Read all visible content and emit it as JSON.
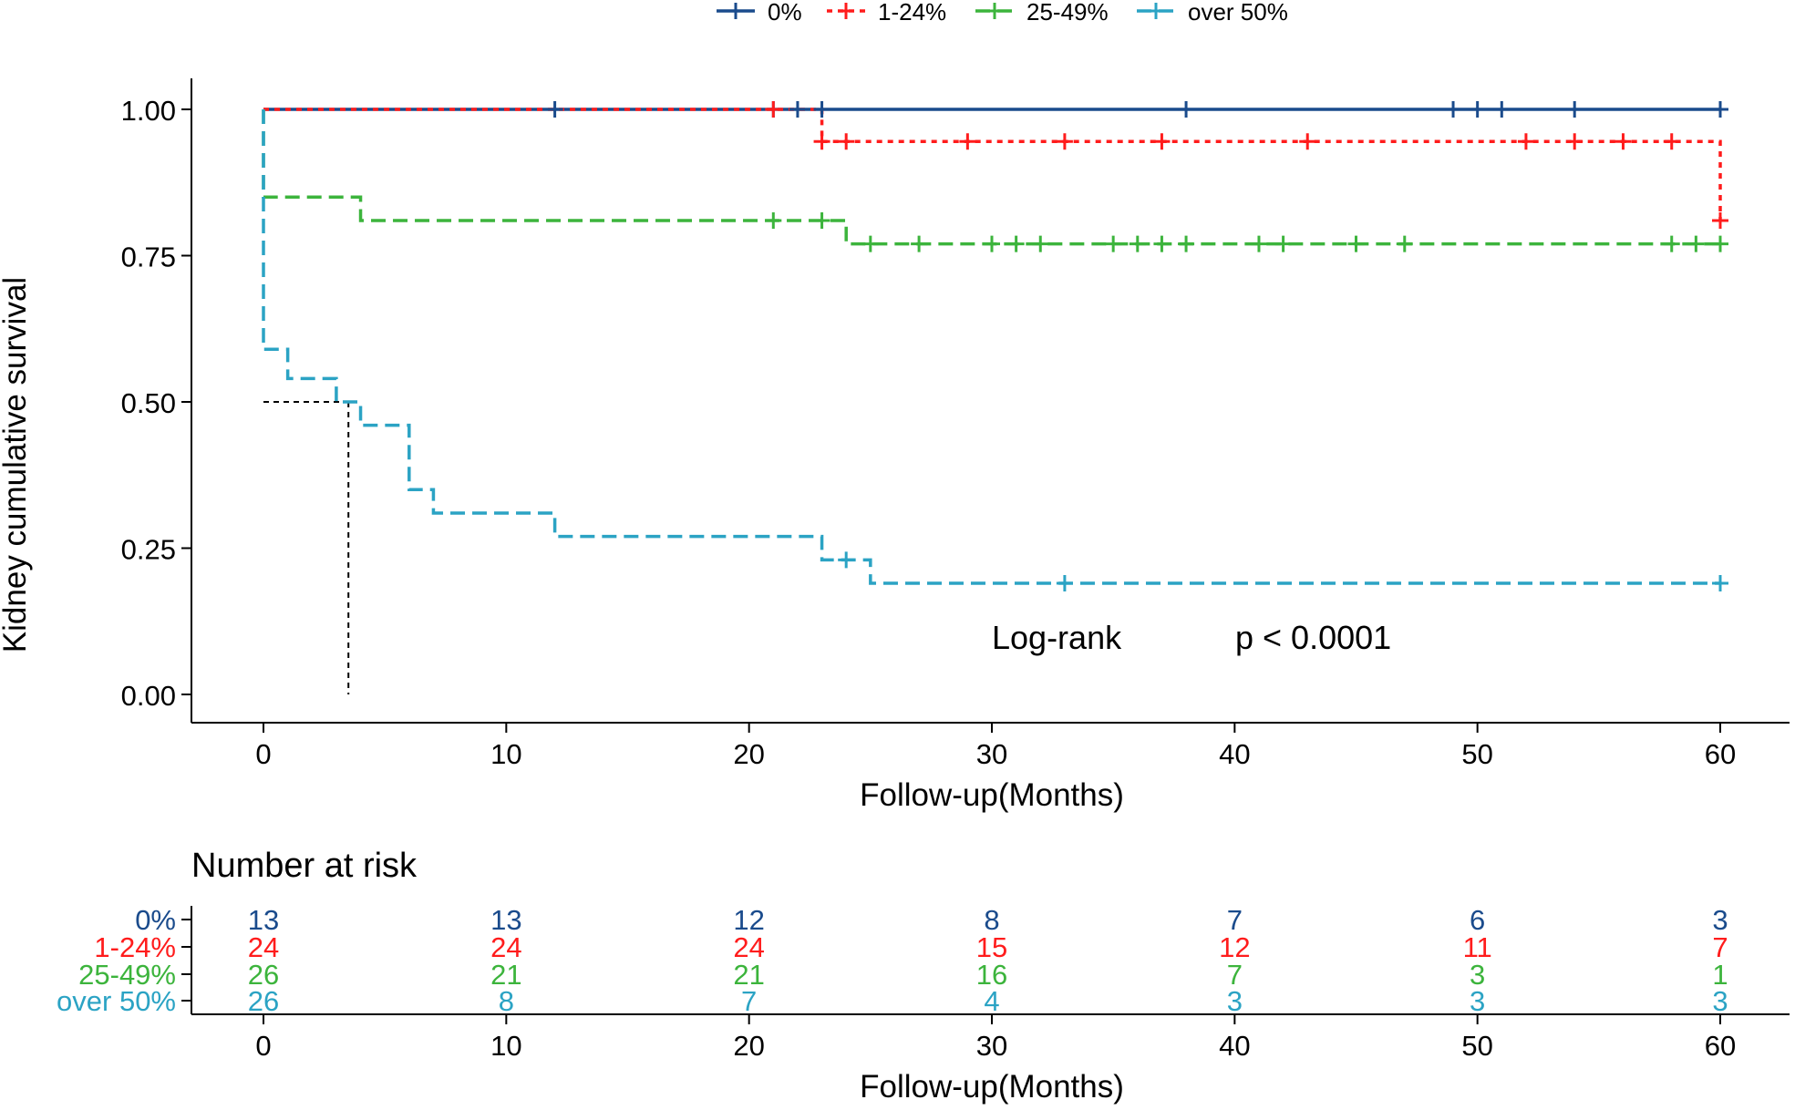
{
  "chart_data": {
    "type": "line",
    "subtype": "kaplan-meier",
    "legend": {
      "position": "top",
      "entries": [
        "0%",
        "1-24%",
        "25-49%",
        "over 50%"
      ]
    },
    "xlabel": "Follow-up(Months)",
    "ylabel": "Kidney cumulative survival",
    "xlim": [
      0,
      60
    ],
    "ylim": [
      0,
      1
    ],
    "x_ticks": [
      0,
      10,
      20,
      30,
      40,
      50,
      60
    ],
    "y_ticks": [
      0,
      0.25,
      0.5,
      0.75,
      1.0
    ],
    "y_tick_labels": [
      "0.00",
      "0.25",
      "0.50",
      "0.75",
      "1.00"
    ],
    "annotation": {
      "label": "Log-rank",
      "pvalue": "p < 0.0001"
    },
    "median_line": {
      "x": 3.5,
      "y": 0.5
    },
    "series": [
      {
        "name": "0%",
        "color": "#1a4b8c",
        "dash": "solid",
        "steps": [
          [
            0,
            1.0
          ],
          [
            60,
            1.0
          ]
        ],
        "censors": [
          12,
          21,
          22,
          23,
          38,
          49,
          50,
          51,
          54,
          60
        ]
      },
      {
        "name": "1-24%",
        "color": "#ff1c1c",
        "dash": "dotted",
        "steps": [
          [
            0,
            1.0
          ],
          [
            23,
            0.945
          ],
          [
            60,
            0.81
          ]
        ],
        "censors": [
          21,
          23,
          24,
          29,
          33,
          37,
          43,
          52,
          54,
          56,
          58,
          60
        ]
      },
      {
        "name": "25-49%",
        "color": "#3cb43c",
        "dash": "dashed",
        "steps": [
          [
            0,
            0.85
          ],
          [
            4,
            0.81
          ],
          [
            24,
            0.77
          ],
          [
            60,
            0.77
          ]
        ],
        "censors": [
          21,
          23,
          25,
          27,
          30,
          31,
          32,
          35,
          36,
          37,
          38,
          41,
          42,
          45,
          47,
          58,
          59,
          60
        ]
      },
      {
        "name": "over 50%",
        "color": "#2ba3c4",
        "dash": "dashed",
        "steps": [
          [
            0,
            0.59
          ],
          [
            1,
            0.54
          ],
          [
            3,
            0.5
          ],
          [
            4,
            0.46
          ],
          [
            6,
            0.35
          ],
          [
            7,
            0.31
          ],
          [
            12,
            0.27
          ],
          [
            23,
            0.23
          ],
          [
            25,
            0.19
          ],
          [
            60,
            0.19
          ]
        ],
        "censors": [
          24,
          33,
          60
        ]
      }
    ],
    "risk_table": {
      "title": "Number at risk",
      "xlabel": "Follow-up(Months)",
      "times": [
        0,
        10,
        20,
        30,
        40,
        50,
        60
      ],
      "x_tick_labels": [
        "0",
        "10",
        "20",
        "30",
        "40",
        "50",
        "60"
      ],
      "rows": [
        {
          "name": "0%",
          "color": "#1a4b8c",
          "values": [
            13,
            13,
            12,
            8,
            7,
            6,
            3
          ]
        },
        {
          "name": "1-24%",
          "color": "#ff1c1c",
          "values": [
            24,
            24,
            24,
            15,
            12,
            11,
            7
          ]
        },
        {
          "name": "25-49%",
          "color": "#3cb43c",
          "values": [
            26,
            21,
            21,
            16,
            7,
            3,
            1
          ]
        },
        {
          "name": "over 50%",
          "color": "#2ba3c4",
          "values": [
            26,
            8,
            7,
            4,
            3,
            3,
            3
          ]
        }
      ]
    }
  }
}
